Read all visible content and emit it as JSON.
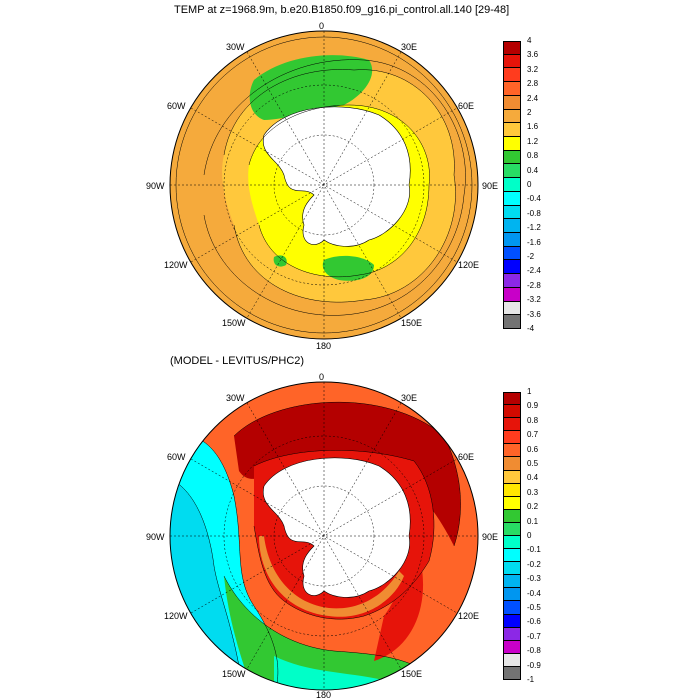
{
  "top_panel": {
    "title": "TEMP at z=1968.9m, b.e20.B1850.f09_g16.pi_control.all.140 [29-48]",
    "lon_labels": [
      "0",
      "30E",
      "60E",
      "90E",
      "120E",
      "150E",
      "180",
      "150W",
      "120W",
      "90W",
      "60W",
      "30W"
    ],
    "colorbar": {
      "levels": [
        "4",
        "3.6",
        "3.2",
        "2.8",
        "2.4",
        "2",
        "1.6",
        "1.2",
        "0.8",
        "0.4",
        "0",
        "-0.4",
        "-0.8",
        "-1.2",
        "-1.6",
        "-2",
        "-2.4",
        "-2.8",
        "-3.2",
        "-3.6",
        "-4"
      ],
      "colors": [
        "#b40000",
        "#e6140a",
        "#ff3c1e",
        "#ff6428",
        "#f08c32",
        "#f5aa3c",
        "#ffc83c",
        "#ffff00",
        "#32c832",
        "#28dc64",
        "#00ffc8",
        "#00ffff",
        "#00dcf0",
        "#00b4f0",
        "#0096f0",
        "#0050ff",
        "#0000ff",
        "#8c28e6",
        "#c800c8",
        "#e6e6e6",
        "#737373"
      ]
    }
  },
  "bottom_panel": {
    "title": "(MODEL - LEVITUS/PHC2)",
    "lon_labels": [
      "0",
      "30E",
      "60E",
      "90E",
      "120E",
      "150E",
      "180",
      "150W",
      "120W",
      "90W",
      "60W",
      "30W"
    ],
    "colorbar": {
      "levels": [
        "1",
        "0.9",
        "0.8",
        "0.7",
        "0.6",
        "0.5",
        "0.4",
        "0.3",
        "0.2",
        "0.1",
        "0",
        "-0.1",
        "-0.2",
        "-0.3",
        "-0.4",
        "-0.5",
        "-0.6",
        "-0.7",
        "-0.8",
        "-0.9",
        "-1"
      ],
      "colors": [
        "#b40000",
        "#d20a00",
        "#e6140a",
        "#ff3c1e",
        "#ff6428",
        "#f08c32",
        "#ffc83c",
        "#ffe600",
        "#ffff00",
        "#32c832",
        "#28dc64",
        "#00ffc8",
        "#00ffff",
        "#00dcf0",
        "#00b4f0",
        "#0096f0",
        "#0050ff",
        "#0000ff",
        "#8c28e6",
        "#c800c8",
        "#e6e6e6",
        "#737373"
      ]
    }
  }
}
